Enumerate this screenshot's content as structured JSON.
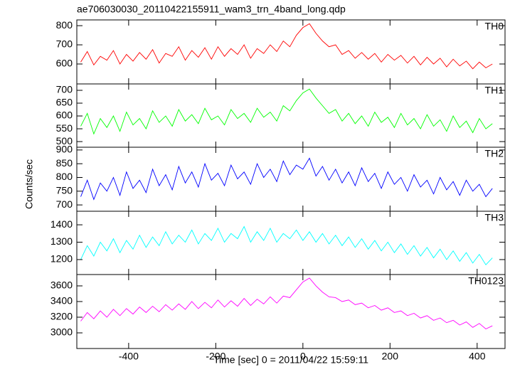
{
  "title": "ae706030030_20110422155911_wam3_trn_4band_long.qdp",
  "ylabel": "Counts/sec",
  "xlabel": "Time [sec] 0 = 2011/04/22 15:59:11",
  "chart_data": [
    {
      "type": "line",
      "x": [
        -510,
        -495,
        -480,
        -465,
        -450,
        -435,
        -420,
        -405,
        -390,
        -375,
        -360,
        -345,
        -330,
        -315,
        -300,
        -285,
        -270,
        -255,
        -240,
        -225,
        -210,
        -195,
        -180,
        -165,
        -150,
        -135,
        -120,
        -105,
        -90,
        -75,
        -60,
        -45,
        -30,
        -15,
        0,
        15,
        30,
        45,
        60,
        75,
        90,
        105,
        120,
        135,
        150,
        165,
        180,
        195,
        210,
        225,
        240,
        255,
        270,
        285,
        300,
        315,
        330,
        345,
        360,
        375,
        390,
        405,
        420,
        435
      ],
      "series": [
        {
          "name": "TH0",
          "color": "#ff0000",
          "values": [
            610,
            665,
            595,
            640,
            620,
            670,
            600,
            650,
            615,
            660,
            625,
            675,
            605,
            655,
            640,
            690,
            620,
            670,
            635,
            685,
            625,
            690,
            640,
            680,
            650,
            700,
            630,
            680,
            655,
            700,
            665,
            720,
            690,
            750,
            790,
            810,
            760,
            720,
            690,
            700,
            650,
            670,
            630,
            660,
            625,
            655,
            610,
            650,
            620,
            645,
            605,
            640,
            595,
            635,
            600,
            630,
            585,
            625,
            590,
            615,
            575,
            610,
            580,
            600
          ]
        }
      ],
      "xlim": [
        -519,
        464
      ],
      "xticks": [
        -400,
        -200,
        0,
        200,
        400
      ],
      "ylim": [
        496,
        830
      ],
      "yticks": [
        600,
        700,
        800
      ]
    },
    {
      "type": "line",
      "x": [
        -510,
        -495,
        -480,
        -465,
        -450,
        -435,
        -420,
        -405,
        -390,
        -375,
        -360,
        -345,
        -330,
        -315,
        -300,
        -285,
        -270,
        -255,
        -240,
        -225,
        -210,
        -195,
        -180,
        -165,
        -150,
        -135,
        -120,
        -105,
        -90,
        -75,
        -60,
        -45,
        -30,
        -15,
        0,
        15,
        30,
        45,
        60,
        75,
        90,
        105,
        120,
        135,
        150,
        165,
        180,
        195,
        210,
        225,
        240,
        255,
        270,
        285,
        300,
        315,
        330,
        345,
        360,
        375,
        390,
        405,
        420,
        435
      ],
      "series": [
        {
          "name": "TH1",
          "color": "#00ff00",
          "values": [
            560,
            610,
            530,
            590,
            555,
            600,
            540,
            615,
            565,
            590,
            550,
            620,
            575,
            600,
            560,
            625,
            580,
            605,
            570,
            630,
            585,
            600,
            565,
            625,
            590,
            610,
            575,
            630,
            595,
            615,
            580,
            640,
            620,
            660,
            690,
            705,
            670,
            640,
            610,
            625,
            580,
            610,
            570,
            600,
            560,
            615,
            575,
            595,
            555,
            610,
            565,
            590,
            550,
            605,
            560,
            585,
            540,
            600,
            555,
            580,
            535,
            590,
            550,
            570
          ]
        }
      ],
      "xlim": [
        -519,
        464
      ],
      "xticks": [
        -400,
        -200,
        0,
        200,
        400
      ],
      "ylim": [
        478,
        725
      ],
      "yticks": [
        500,
        550,
        600,
        650,
        700
      ]
    },
    {
      "type": "line",
      "x": [
        -510,
        -495,
        -480,
        -465,
        -450,
        -435,
        -420,
        -405,
        -390,
        -375,
        -360,
        -345,
        -330,
        -315,
        -300,
        -285,
        -270,
        -255,
        -240,
        -225,
        -210,
        -195,
        -180,
        -165,
        -150,
        -135,
        -120,
        -105,
        -90,
        -75,
        -60,
        -45,
        -30,
        -15,
        0,
        15,
        30,
        45,
        60,
        75,
        90,
        105,
        120,
        135,
        150,
        165,
        180,
        195,
        210,
        225,
        240,
        255,
        270,
        285,
        300,
        315,
        330,
        345,
        360,
        375,
        390,
        405,
        420,
        435
      ],
      "series": [
        {
          "name": "TH2",
          "color": "#0000ff",
          "values": [
            730,
            790,
            720,
            780,
            750,
            800,
            735,
            820,
            760,
            790,
            745,
            830,
            770,
            810,
            755,
            840,
            780,
            820,
            765,
            850,
            790,
            815,
            770,
            845,
            795,
            820,
            775,
            850,
            800,
            830,
            785,
            860,
            810,
            845,
            830,
            870,
            805,
            840,
            790,
            830,
            780,
            820,
            770,
            835,
            785,
            815,
            760,
            820,
            775,
            800,
            750,
            810,
            765,
            790,
            740,
            800,
            755,
            785,
            735,
            790,
            750,
            775,
            730,
            760
          ]
        }
      ],
      "xlim": [
        -519,
        464
      ],
      "xticks": [
        -400,
        -200,
        0,
        200,
        400
      ],
      "ylim": [
        677,
        910
      ],
      "yticks": [
        700,
        750,
        800,
        850,
        900
      ]
    },
    {
      "type": "line",
      "x": [
        -510,
        -495,
        -480,
        -465,
        -450,
        -435,
        -420,
        -405,
        -390,
        -375,
        -360,
        -345,
        -330,
        -315,
        -300,
        -285,
        -270,
        -255,
        -240,
        -225,
        -210,
        -195,
        -180,
        -165,
        -150,
        -135,
        -120,
        -105,
        -90,
        -75,
        -60,
        -45,
        -30,
        -15,
        0,
        15,
        30,
        45,
        60,
        75,
        90,
        105,
        120,
        135,
        150,
        165,
        180,
        195,
        210,
        225,
        240,
        255,
        270,
        285,
        300,
        315,
        330,
        345,
        360,
        375,
        390,
        405,
        420,
        435
      ],
      "series": [
        {
          "name": "TH3",
          "color": "#00ffff",
          "values": [
            1200,
            1280,
            1220,
            1300,
            1250,
            1320,
            1240,
            1310,
            1260,
            1340,
            1270,
            1330,
            1280,
            1360,
            1290,
            1340,
            1300,
            1370,
            1290,
            1350,
            1310,
            1380,
            1300,
            1350,
            1320,
            1390,
            1300,
            1360,
            1310,
            1380,
            1300,
            1350,
            1320,
            1370,
            1310,
            1360,
            1300,
            1350,
            1290,
            1340,
            1280,
            1330,
            1270,
            1320,
            1260,
            1310,
            1250,
            1300,
            1240,
            1290,
            1230,
            1280,
            1220,
            1270,
            1210,
            1260,
            1200,
            1250,
            1190,
            1240,
            1180,
            1230,
            1170,
            1210
          ]
        }
      ],
      "xlim": [
        -519,
        464
      ],
      "xticks": [
        -400,
        -200,
        0,
        200,
        400
      ],
      "ylim": [
        1114,
        1478
      ],
      "yticks": [
        1200,
        1300,
        1400
      ]
    },
    {
      "type": "line",
      "x": [
        -510,
        -495,
        -480,
        -465,
        -450,
        -435,
        -420,
        -405,
        -390,
        -375,
        -360,
        -345,
        -330,
        -315,
        -300,
        -285,
        -270,
        -255,
        -240,
        -225,
        -210,
        -195,
        -180,
        -165,
        -150,
        -135,
        -120,
        -105,
        -90,
        -75,
        -60,
        -45,
        -30,
        -15,
        0,
        15,
        30,
        45,
        60,
        75,
        90,
        105,
        120,
        135,
        150,
        165,
        180,
        195,
        210,
        225,
        240,
        255,
        270,
        285,
        300,
        315,
        330,
        345,
        360,
        375,
        390,
        405,
        420,
        435
      ],
      "series": [
        {
          "name": "TH0123",
          "color": "#ff00ff",
          "values": [
            3150,
            3260,
            3180,
            3280,
            3200,
            3300,
            3220,
            3310,
            3240,
            3330,
            3260,
            3340,
            3270,
            3360,
            3290,
            3370,
            3300,
            3400,
            3310,
            3390,
            3320,
            3420,
            3330,
            3410,
            3340,
            3440,
            3350,
            3430,
            3370,
            3460,
            3380,
            3470,
            3450,
            3550,
            3650,
            3700,
            3600,
            3520,
            3460,
            3450,
            3400,
            3420,
            3360,
            3380,
            3320,
            3350,
            3290,
            3320,
            3260,
            3280,
            3220,
            3250,
            3190,
            3220,
            3160,
            3190,
            3130,
            3160,
            3100,
            3140,
            3070,
            3120,
            3050,
            3090
          ]
        }
      ],
      "xlim": [
        -519,
        464
      ],
      "xticks": [
        -400,
        -200,
        0,
        200,
        400
      ],
      "ylim": [
        2800,
        3745
      ],
      "yticks": [
        3000,
        3200,
        3400,
        3600
      ]
    }
  ]
}
